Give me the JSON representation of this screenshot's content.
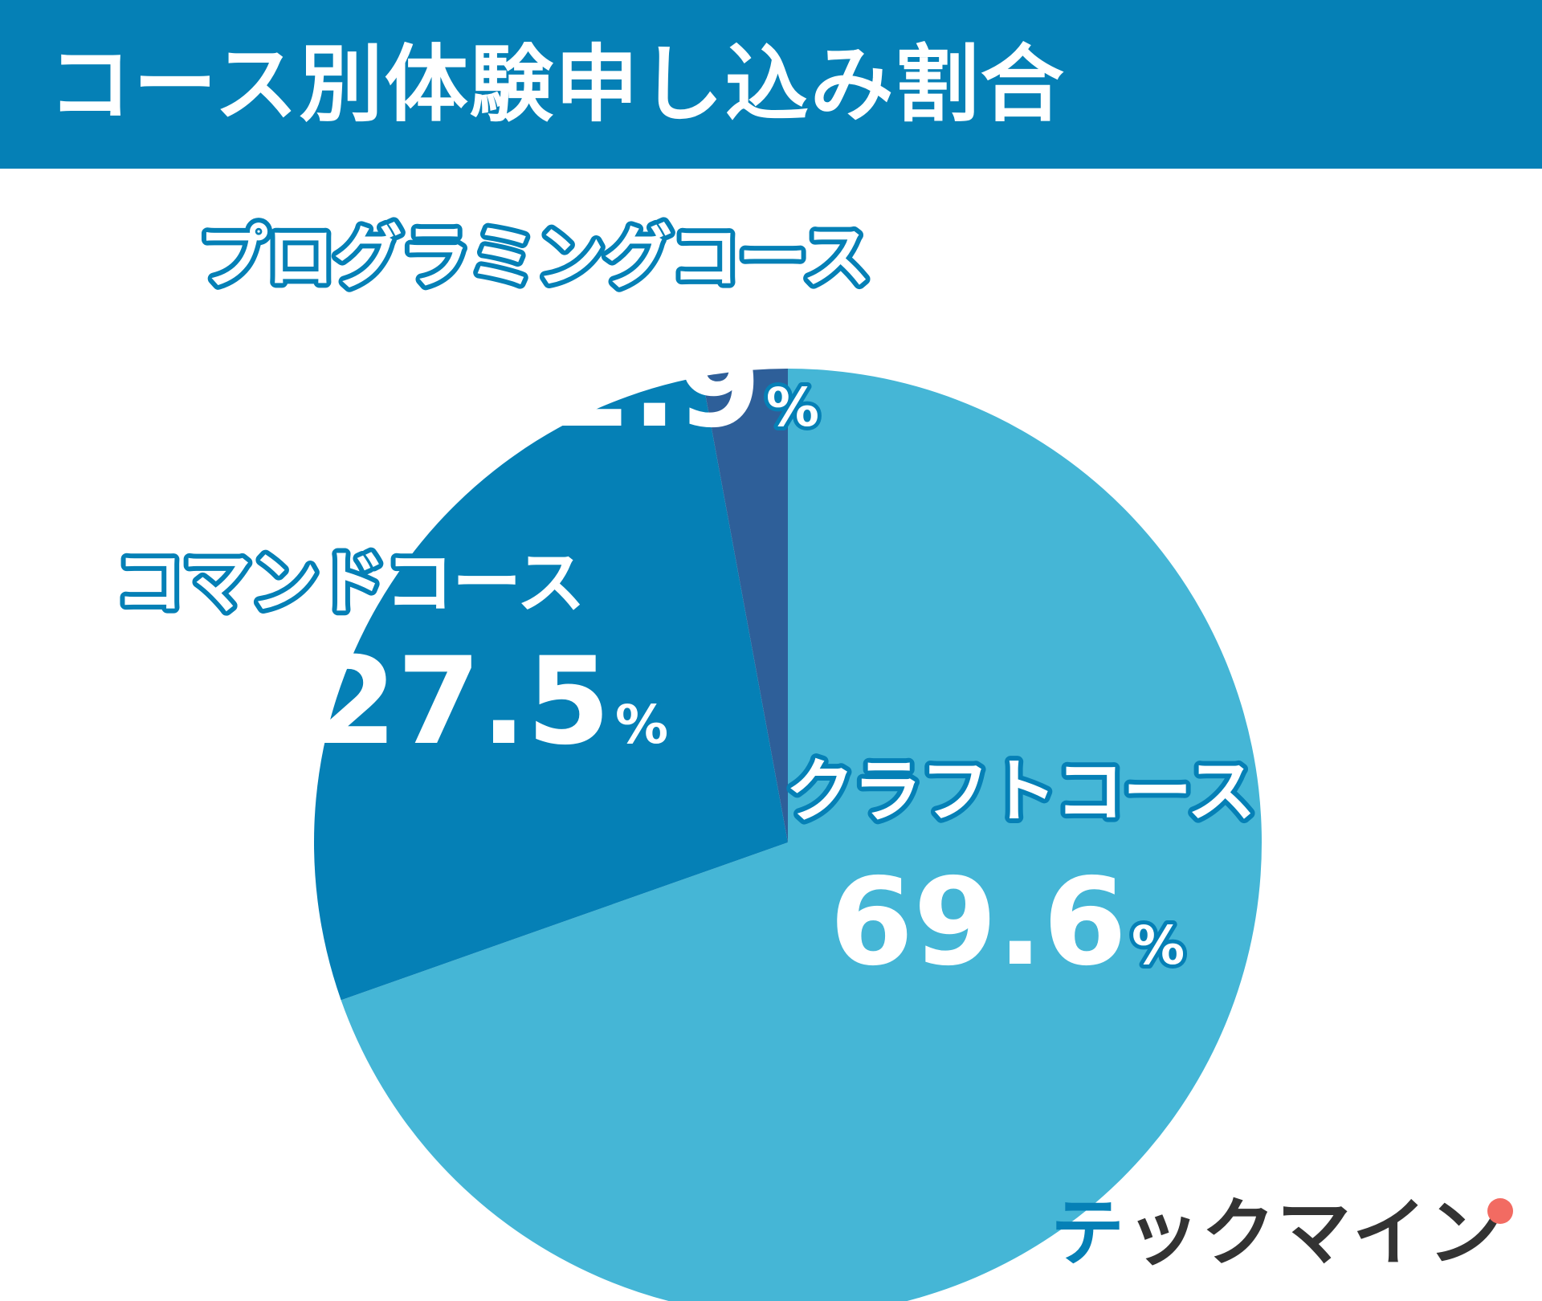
{
  "header": {
    "title": "コース別体験申し込み割合"
  },
  "chart_data": {
    "type": "pie",
    "title": "コース別体験申し込み割合",
    "unit": "%",
    "series": [
      {
        "name": "クラフトコース",
        "value": 69.6,
        "label": "69.6",
        "color": "#45b6d6"
      },
      {
        "name": "コマンドコース",
        "value": 27.5,
        "label": "27.5",
        "color": "#0580b6"
      },
      {
        "name": "プログラミングコース",
        "value": 2.9,
        "label": "2.9",
        "color": "#2e5f99"
      }
    ]
  },
  "logo": {
    "prefix": "テ",
    "rest": "ックマイン",
    "dot_color": "#f26b62"
  }
}
